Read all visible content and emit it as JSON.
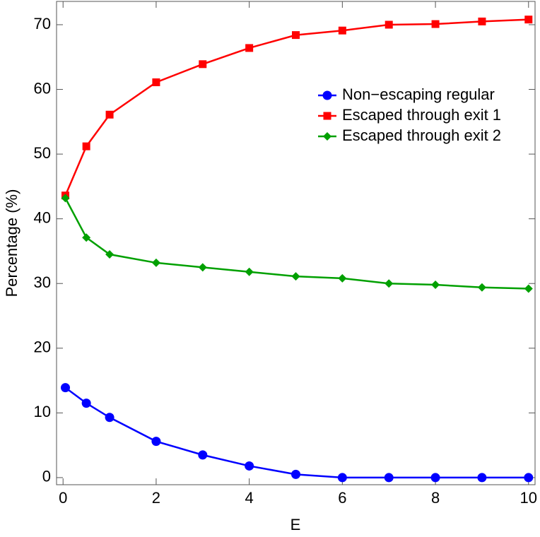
{
  "chart_data": {
    "type": "line",
    "xlabel": "E",
    "ylabel": "Percentage (%)",
    "x": [
      0.05,
      0.5,
      1,
      2,
      3,
      4,
      5,
      6,
      7,
      8,
      9,
      10
    ],
    "series": [
      {
        "name": "Non−escaping regular",
        "color": "#0000ff",
        "marker": "circle",
        "values": [
          13.9,
          11.5,
          9.3,
          5.6,
          3.5,
          1.8,
          0.5,
          0,
          0,
          0,
          0,
          0
        ]
      },
      {
        "name": "Escaped through exit 1",
        "color": "#ff0000",
        "marker": "square",
        "values": [
          43.6,
          51.2,
          56.1,
          61.1,
          63.9,
          66.4,
          68.4,
          69.1,
          70.0,
          70.1,
          70.5,
          70.8
        ]
      },
      {
        "name": "Escaped through exit 2",
        "color": "#00a000",
        "marker": "diamond",
        "values": [
          43.2,
          37.1,
          34.5,
          33.2,
          32.5,
          31.8,
          31.1,
          30.8,
          30.0,
          29.8,
          29.4,
          29.2
        ]
      }
    ],
    "xlim": [
      -0.14,
      10.14
    ],
    "ylim": [
      -1.1,
      73.6
    ],
    "xticks": [
      0,
      2,
      4,
      6,
      8,
      10
    ],
    "yticks": [
      0,
      10,
      20,
      30,
      40,
      50,
      60,
      70
    ],
    "grid": false,
    "legend": "upper-right"
  }
}
